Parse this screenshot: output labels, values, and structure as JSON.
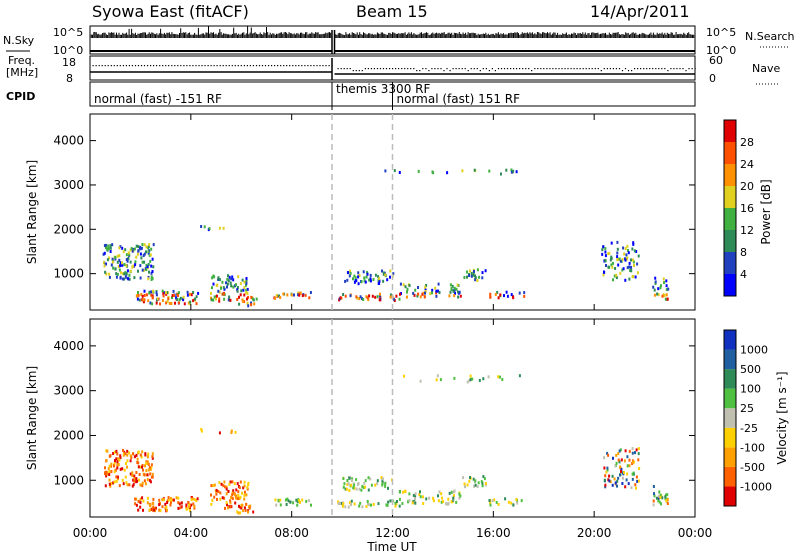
{
  "chart_data": {
    "type": "heatmap",
    "header": {
      "station": "Syowa East (fitACF)",
      "beam": "Beam 15",
      "date": "14/Apr/2011"
    },
    "top_panels": {
      "nsky_label": "N.Sky",
      "nsky_ticks": [
        "10^5",
        "10^0"
      ],
      "nsearch_label": "N.Search",
      "nsearch_ticks": [
        "10^5",
        "10^0"
      ],
      "freq_label_1": "Freq.",
      "freq_label_2": "[MHz]",
      "freq_ticks": [
        "18",
        "8"
      ],
      "nave_label": "Nave",
      "nave_ticks": [
        "60",
        "0"
      ],
      "cpid_label": "CPID",
      "cpid_segments": [
        {
          "label": "normal (fast) -151 RF",
          "start_hour": 0,
          "end_hour": 9.6
        },
        {
          "label": "themis 3300 RF",
          "start_hour": 9.6,
          "end_hour": 12.0
        },
        {
          "label": "normal (fast) 151 RF",
          "start_hour": 12.0,
          "end_hour": 24
        }
      ],
      "data_gap_hours": [
        9.6,
        9.7
      ]
    },
    "x_axis": {
      "label": "Time UT",
      "ticks": [
        "00:00",
        "04:00",
        "08:00",
        "12:00",
        "16:00",
        "20:00",
        "00:00"
      ],
      "range_hours": [
        0,
        24
      ]
    },
    "y_axis": {
      "label": "Slant Range [km]",
      "ticks": [
        "1000",
        "2000",
        "3000",
        "4000"
      ],
      "range_km": [
        180,
        4600
      ]
    },
    "power_panel": {
      "colorbar_label": "Power [dB]",
      "colorbar_ticks": [
        "4",
        "8",
        "12",
        "16",
        "20",
        "24",
        "28"
      ],
      "colors": [
        "#0000ff",
        "#2040c0",
        "#2e8b57",
        "#40b040",
        "#e0d020",
        "#ff9000",
        "#ff5000",
        "#e00000"
      ]
    },
    "velocity_panel": {
      "colorbar_label": "Velocity [m s⁻¹]",
      "colorbar_ticks": [
        "1000",
        "500",
        "100",
        "25",
        "-25",
        "-100",
        "-500",
        "-1000"
      ],
      "colors": [
        "#1030c0",
        "#2060a0",
        "#2e8b57",
        "#50c040",
        "#c0c0b0",
        "#ffd000",
        "#ffa000",
        "#ff6000",
        "#e00000"
      ]
    }
  }
}
